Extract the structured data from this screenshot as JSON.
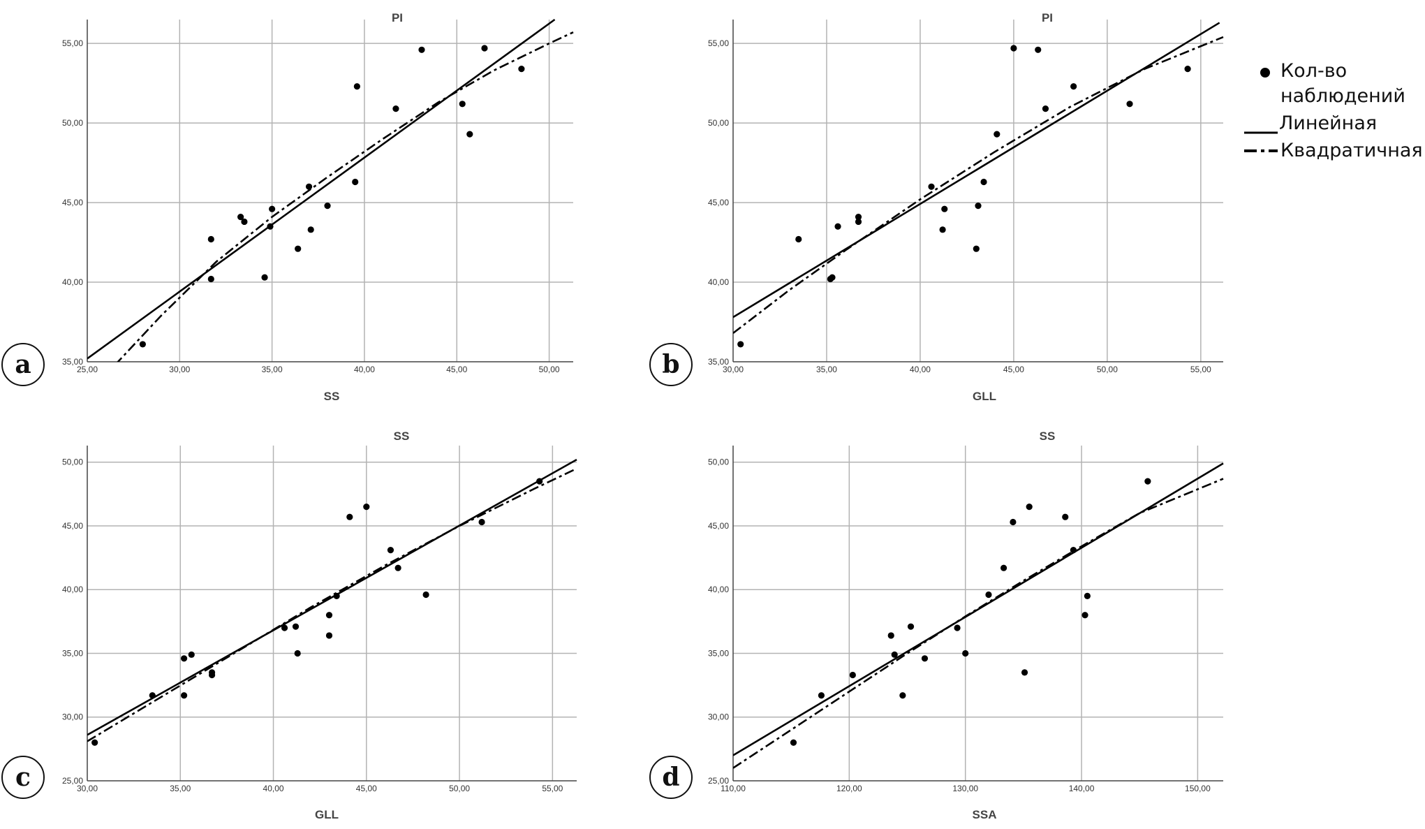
{
  "chart_data": [
    {
      "id": "a",
      "type": "scatter",
      "panel_letter": "a",
      "title": "PI",
      "xlabel": "SS",
      "ylabel": "",
      "xlim": [
        25,
        51.3
      ],
      "ylim": [
        35,
        56.5
      ],
      "xticks": [
        25,
        30,
        35,
        40,
        45,
        50
      ],
      "xtick_labels": [
        "25,00",
        "30,00",
        "35,00",
        "40,00",
        "45,00",
        "50,00"
      ],
      "yticks": [
        35,
        40,
        45,
        50,
        55
      ],
      "ytick_labels": [
        "35,00",
        "40,00",
        "45,00",
        "50,00",
        "55,00"
      ],
      "grid": true,
      "points": [
        [
          28.0,
          36.1
        ],
        [
          31.7,
          42.7
        ],
        [
          31.7,
          40.2
        ],
        [
          33.3,
          44.1
        ],
        [
          33.5,
          43.8
        ],
        [
          34.6,
          40.3
        ],
        [
          34.9,
          43.5
        ],
        [
          35.0,
          44.6
        ],
        [
          36.4,
          42.1
        ],
        [
          37.0,
          46.0
        ],
        [
          37.1,
          43.3
        ],
        [
          38.0,
          44.8
        ],
        [
          39.5,
          46.3
        ],
        [
          39.6,
          52.3
        ],
        [
          41.7,
          50.9
        ],
        [
          43.1,
          54.6
        ],
        [
          45.3,
          51.2
        ],
        [
          45.7,
          49.3
        ],
        [
          46.5,
          54.7
        ],
        [
          48.5,
          53.4
        ]
      ],
      "linear_fit": [
        [
          25,
          35.2
        ],
        [
          50.3,
          56.5
        ]
      ],
      "quadratic_fit": [
        [
          26.5,
          34.8
        ],
        [
          29,
          37.9
        ],
        [
          32,
          41.3
        ],
        [
          35,
          44.1
        ],
        [
          38,
          46.6
        ],
        [
          41,
          49.0
        ],
        [
          44,
          51.3
        ],
        [
          47,
          53.3
        ],
        [
          50,
          55.0
        ],
        [
          51.3,
          55.7
        ]
      ]
    },
    {
      "id": "b",
      "type": "scatter",
      "panel_letter": "b",
      "title": "PI",
      "xlabel": "GLL",
      "ylabel": "",
      "xlim": [
        30,
        56.2
      ],
      "ylim": [
        35,
        56.5
      ],
      "xticks": [
        30,
        35,
        40,
        45,
        50,
        55
      ],
      "xtick_labels": [
        "30,00",
        "35,00",
        "40,00",
        "45,00",
        "50,00",
        "55,00"
      ],
      "yticks": [
        35,
        40,
        45,
        50,
        55
      ],
      "ytick_labels": [
        "35,00",
        "40,00",
        "45,00",
        "50,00",
        "55,00"
      ],
      "grid": true,
      "points": [
        [
          30.4,
          36.1
        ],
        [
          33.5,
          42.7
        ],
        [
          35.2,
          40.2
        ],
        [
          35.3,
          40.3
        ],
        [
          35.6,
          43.5
        ],
        [
          36.7,
          44.1
        ],
        [
          36.7,
          43.8
        ],
        [
          40.6,
          46.0
        ],
        [
          41.2,
          43.3
        ],
        [
          41.3,
          44.6
        ],
        [
          43.0,
          42.1
        ],
        [
          43.1,
          44.8
        ],
        [
          43.4,
          46.3
        ],
        [
          44.1,
          49.3
        ],
        [
          45.0,
          54.7
        ],
        [
          46.3,
          54.6
        ],
        [
          46.7,
          50.9
        ],
        [
          48.2,
          52.3
        ],
        [
          51.2,
          51.2
        ],
        [
          54.3,
          53.4
        ]
      ],
      "linear_fit": [
        [
          30,
          37.8
        ],
        [
          56.0,
          56.3
        ]
      ],
      "quadratic_fit": [
        [
          30,
          36.8
        ],
        [
          33,
          39.5
        ],
        [
          36,
          42.0
        ],
        [
          40,
          45.2
        ],
        [
          44,
          48.2
        ],
        [
          48,
          51.0
        ],
        [
          52,
          53.4
        ],
        [
          56.2,
          55.4
        ]
      ]
    },
    {
      "id": "c",
      "type": "scatter",
      "panel_letter": "c",
      "title": "SS",
      "xlabel": "GLL",
      "ylabel": "",
      "xlim": [
        30,
        56.3
      ],
      "ylim": [
        25,
        51.3
      ],
      "xticks": [
        30,
        35,
        40,
        45,
        50,
        55
      ],
      "xtick_labels": [
        "30,00",
        "35,00",
        "40,00",
        "45,00",
        "50,00",
        "55,00"
      ],
      "yticks": [
        25,
        30,
        35,
        40,
        45,
        50
      ],
      "ytick_labels": [
        "25,00",
        "30,00",
        "35,00",
        "40,00",
        "45,00",
        "50,00"
      ],
      "grid": true,
      "points": [
        [
          30.4,
          28.0
        ],
        [
          33.5,
          31.7
        ],
        [
          35.2,
          34.6
        ],
        [
          35.2,
          31.7
        ],
        [
          35.6,
          34.9
        ],
        [
          36.7,
          33.5
        ],
        [
          36.7,
          33.3
        ],
        [
          40.6,
          37.0
        ],
        [
          41.2,
          37.1
        ],
        [
          41.3,
          35.0
        ],
        [
          43.0,
          38.0
        ],
        [
          43.0,
          36.4
        ],
        [
          43.4,
          39.5
        ],
        [
          44.1,
          45.7
        ],
        [
          45.0,
          46.5
        ],
        [
          46.3,
          43.1
        ],
        [
          46.7,
          41.7
        ],
        [
          48.2,
          39.6
        ],
        [
          51.2,
          45.3
        ],
        [
          54.3,
          48.5
        ]
      ],
      "linear_fit": [
        [
          30,
          28.6
        ],
        [
          56.3,
          50.2
        ]
      ],
      "quadratic_fit": [
        [
          30,
          28.1
        ],
        [
          34,
          31.6
        ],
        [
          38,
          35.1
        ],
        [
          42,
          38.6
        ],
        [
          46,
          41.9
        ],
        [
          50,
          45.0
        ],
        [
          54,
          47.9
        ],
        [
          56.3,
          49.5
        ]
      ]
    },
    {
      "id": "d",
      "type": "scatter",
      "panel_letter": "d",
      "title": "SS",
      "xlabel": "SSA",
      "ylabel": "",
      "xlim": [
        110,
        152.2
      ],
      "ylim": [
        25,
        51.3
      ],
      "xticks": [
        110,
        120,
        130,
        140,
        150
      ],
      "xtick_labels": [
        "110,00",
        "120,00",
        "130,00",
        "140,00",
        "150,00"
      ],
      "yticks": [
        25,
        30,
        35,
        40,
        45,
        50
      ],
      "ytick_labels": [
        "25,00",
        "30,00",
        "35,00",
        "40,00",
        "45,00",
        "50,00"
      ],
      "grid": true,
      "points": [
        [
          115.2,
          28.0
        ],
        [
          117.6,
          31.7
        ],
        [
          120.3,
          33.3
        ],
        [
          123.6,
          36.4
        ],
        [
          123.9,
          34.9
        ],
        [
          124.6,
          31.7
        ],
        [
          125.3,
          37.1
        ],
        [
          126.5,
          34.6
        ],
        [
          129.3,
          37.0
        ],
        [
          130.0,
          35.0
        ],
        [
          132.0,
          39.6
        ],
        [
          133.3,
          41.7
        ],
        [
          134.1,
          45.3
        ],
        [
          135.1,
          33.5
        ],
        [
          135.5,
          46.5
        ],
        [
          138.6,
          45.7
        ],
        [
          139.3,
          43.1
        ],
        [
          140.3,
          38.0
        ],
        [
          140.5,
          39.5
        ],
        [
          145.7,
          48.5
        ]
      ],
      "linear_fit": [
        [
          110,
          27.0
        ],
        [
          152.2,
          49.9
        ]
      ],
      "quadratic_fit": [
        [
          110,
          26.0
        ],
        [
          115,
          29.0
        ],
        [
          120,
          32.0
        ],
        [
          125,
          35.0
        ],
        [
          130,
          37.9
        ],
        [
          135,
          40.7
        ],
        [
          140,
          43.4
        ],
        [
          145,
          46.0
        ],
        [
          152.2,
          48.7
        ]
      ]
    }
  ],
  "legend": {
    "items": [
      {
        "symbol": "dot",
        "label_lines": [
          "Кол-во",
          "наблюдений"
        ]
      },
      {
        "symbol": "solid",
        "label_lines": [
          "Линейная"
        ]
      },
      {
        "symbol": "dashdot",
        "label_lines": [
          "Квадратичная"
        ]
      }
    ]
  },
  "colors": {
    "grid": "#b3b3b3",
    "axis": "#444444",
    "marks": "#000000",
    "letter_badge_fill": "#ffffff",
    "letter_badge_stroke": "#111111"
  }
}
